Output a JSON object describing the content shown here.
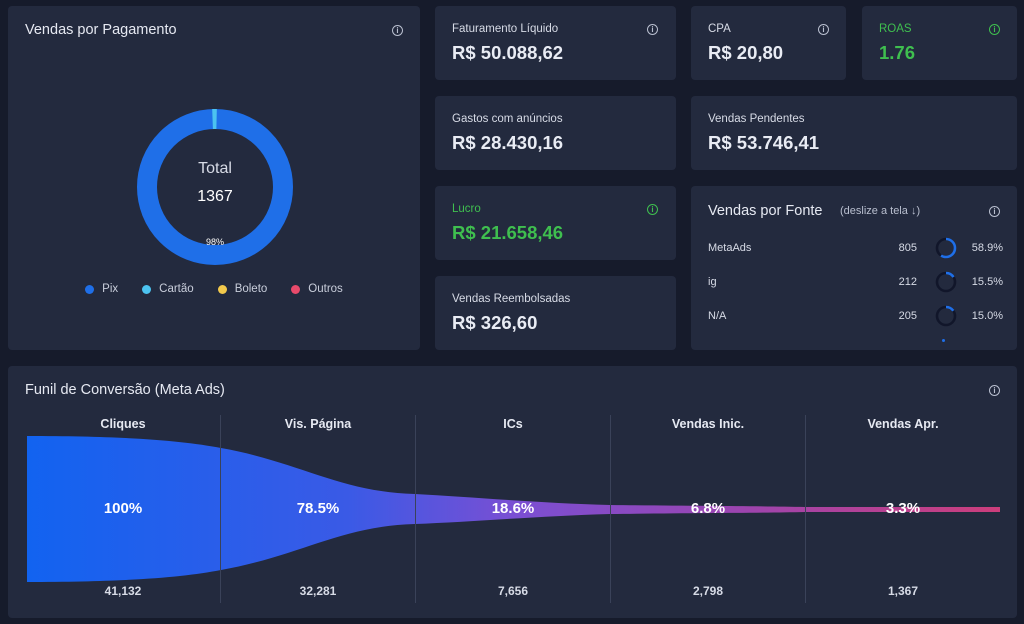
{
  "vendas_pagamento": {
    "title": "Vendas por Pagamento",
    "center_label": "Total",
    "center_value": "1367",
    "slice_label": "98%",
    "legend": [
      {
        "label": "Pix",
        "color": "#1f6fe8"
      },
      {
        "label": "Cartão",
        "color": "#4cc3f0"
      },
      {
        "label": "Boleto",
        "color": "#f2c94c"
      },
      {
        "label": "Outros",
        "color": "#e84a6b"
      }
    ]
  },
  "kpis": {
    "faturamento": {
      "label": "Faturamento Líquido",
      "value": "R$ 50.088,62"
    },
    "cpa": {
      "label": "CPA",
      "value": "R$ 20,80"
    },
    "roas": {
      "label": "ROAS",
      "value": "1.76"
    },
    "gastos": {
      "label": "Gastos com anúncios",
      "value": "R$ 28.430,16"
    },
    "pendentes": {
      "label": "Vendas Pendentes",
      "value": "R$ 53.746,41"
    },
    "lucro": {
      "label": "Lucro",
      "value": "R$ 21.658,46"
    },
    "reembolsadas": {
      "label": "Vendas Reembolsadas",
      "value": "R$ 326,60"
    }
  },
  "vendas_fonte": {
    "title": "Vendas por Fonte",
    "hint": "(deslize a tela",
    "rows": [
      {
        "name": "MetaAds",
        "count": "805",
        "pct": "58.9%"
      },
      {
        "name": "ig",
        "count": "212",
        "pct": "15.5%"
      },
      {
        "name": "N/A",
        "count": "205",
        "pct": "15.0%"
      }
    ]
  },
  "funil": {
    "title": "Funil de Conversão (Meta Ads)",
    "stages": [
      {
        "title": "Cliques",
        "pct": "100%",
        "count": "41,132"
      },
      {
        "title": "Vis. Página",
        "pct": "78.5%",
        "count": "32,281"
      },
      {
        "title": "ICs",
        "pct": "18.6%",
        "count": "7,656"
      },
      {
        "title": "Vendas Inic.",
        "pct": "6.8%",
        "count": "2,798"
      },
      {
        "title": "Vendas Apr.",
        "pct": "3.3%",
        "count": "1,367"
      }
    ]
  },
  "colors": {
    "background": "#161b2b",
    "card": "#232a3e",
    "green": "#3fbf4f",
    "donut_blue": "#1f6fe8",
    "donut_cyan": "#4cc3f0",
    "funnel_start": "#1565f2",
    "funnel_mid": "#7b4fd6",
    "funnel_end": "#c2407e"
  }
}
